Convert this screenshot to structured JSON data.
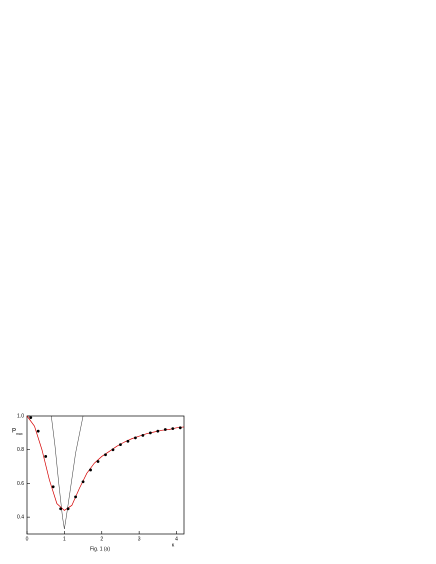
{
  "chart_data": {
    "type": "line",
    "caption": "Fig. 1 (a)",
    "x_label": "κ",
    "y_label": "P",
    "y_label_sub": "max",
    "xlim": [
      0,
      4.2
    ],
    "ylim": [
      0.3,
      1.0
    ],
    "xticks": [
      0,
      1,
      2,
      3,
      4
    ],
    "yticks": [
      0.4,
      0.6,
      0.8,
      {
        "value": 1,
        "label": "1.0"
      }
    ],
    "series": [
      {
        "color": "#000000",
        "style": "thin",
        "x": [
          0.65,
          0.75,
          0.85,
          0.95,
          1.0,
          1.05,
          1.15,
          1.3,
          1.5
        ],
        "values": [
          1.0,
          0.82,
          0.6,
          0.4,
          0.33,
          0.4,
          0.55,
          0.78,
          1.0
        ]
      },
      {
        "color": "#d40000",
        "style": "line",
        "x": [
          0,
          0.2,
          0.4,
          0.6,
          0.8,
          1.0,
          1.2,
          1.4,
          1.6,
          1.8,
          2.0,
          2.2,
          2.4,
          2.6,
          2.8,
          3.0,
          3.2,
          3.4,
          3.6,
          3.8,
          4.0,
          4.2
        ],
        "values": [
          1.0,
          0.94,
          0.8,
          0.62,
          0.48,
          0.44,
          0.47,
          0.57,
          0.66,
          0.72,
          0.76,
          0.79,
          0.82,
          0.845,
          0.865,
          0.88,
          0.895,
          0.905,
          0.915,
          0.92,
          0.93,
          0.935
        ]
      },
      {
        "color": "#000000",
        "style": "dots",
        "x": [
          0.1,
          0.3,
          0.5,
          0.7,
          0.9,
          1.1,
          1.3,
          1.5,
          1.7,
          1.9,
          2.1,
          2.3,
          2.5,
          2.7,
          2.9,
          3.1,
          3.3,
          3.5,
          3.7,
          3.9,
          4.1
        ],
        "values": [
          0.99,
          0.91,
          0.76,
          0.58,
          0.45,
          0.45,
          0.52,
          0.61,
          0.68,
          0.73,
          0.77,
          0.8,
          0.83,
          0.85,
          0.87,
          0.885,
          0.9,
          0.91,
          0.92,
          0.925,
          0.93
        ]
      }
    ]
  }
}
